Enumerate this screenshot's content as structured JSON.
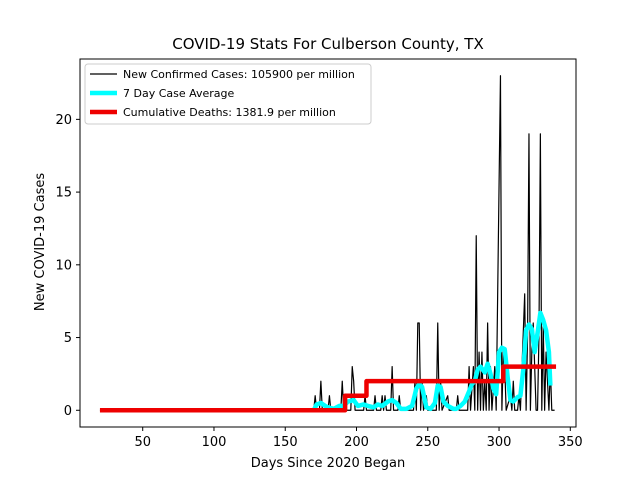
{
  "chart_data": {
    "type": "line",
    "title": "COVID-19 Stats For Culberson County, TX",
    "xlabel": "Days Since 2020 Began",
    "ylabel": "New COVID-19 Cases",
    "xlim": [
      6,
      354
    ],
    "ylim": [
      -1.15,
      24.15
    ],
    "x_ticks": [
      50,
      100,
      150,
      200,
      250,
      300,
      350
    ],
    "y_ticks": [
      0,
      5,
      10,
      15,
      20
    ],
    "grid": false,
    "legend_position": "top-left",
    "series": [
      {
        "name": "New Confirmed Cases: 105900 per million",
        "color": "#000000",
        "points": [
          [
            20,
            0
          ],
          [
            170,
            0
          ],
          [
            171,
            1
          ],
          [
            172,
            0
          ],
          [
            174,
            0
          ],
          [
            175,
            2
          ],
          [
            176,
            0
          ],
          [
            180,
            0
          ],
          [
            181,
            1
          ],
          [
            182,
            0
          ],
          [
            189,
            0
          ],
          [
            190,
            2
          ],
          [
            191,
            0
          ],
          [
            196,
            0
          ],
          [
            197,
            3
          ],
          [
            198,
            2
          ],
          [
            199,
            0
          ],
          [
            205,
            0
          ],
          [
            206,
            1
          ],
          [
            207,
            0
          ],
          [
            212,
            0
          ],
          [
            213,
            1
          ],
          [
            214,
            0
          ],
          [
            217,
            0
          ],
          [
            218,
            1
          ],
          [
            219,
            0
          ],
          [
            220,
            1
          ],
          [
            221,
            0
          ],
          [
            224,
            0
          ],
          [
            225,
            3
          ],
          [
            226,
            0
          ],
          [
            229,
            0
          ],
          [
            230,
            1
          ],
          [
            231,
            0
          ],
          [
            240,
            0
          ],
          [
            241,
            2
          ],
          [
            242,
            0
          ],
          [
            243,
            6
          ],
          [
            244,
            6
          ],
          [
            245,
            0
          ],
          [
            246,
            2
          ],
          [
            247,
            0
          ],
          [
            249,
            1
          ],
          [
            250,
            0
          ],
          [
            256,
            0
          ],
          [
            257,
            6
          ],
          [
            258,
            0
          ],
          [
            259,
            2
          ],
          [
            260,
            0
          ],
          [
            264,
            1
          ],
          [
            265,
            0
          ],
          [
            270,
            0
          ],
          [
            271,
            1
          ],
          [
            272,
            0
          ],
          [
            278,
            0
          ],
          [
            279,
            3
          ],
          [
            280,
            0
          ],
          [
            282,
            3
          ],
          [
            283,
            0
          ],
          [
            284,
            12
          ],
          [
            285,
            0
          ],
          [
            286,
            4
          ],
          [
            287,
            0
          ],
          [
            288,
            4
          ],
          [
            289,
            0
          ],
          [
            290,
            2
          ],
          [
            291,
            0
          ],
          [
            292,
            6
          ],
          [
            293,
            0
          ],
          [
            294,
            3
          ],
          [
            295,
            0
          ],
          [
            297,
            3
          ],
          [
            298,
            0
          ],
          [
            301,
            23
          ],
          [
            302,
            0
          ],
          [
            303,
            4
          ],
          [
            304,
            3
          ],
          [
            305,
            0
          ],
          [
            308,
            1
          ],
          [
            309,
            0
          ],
          [
            310,
            2
          ],
          [
            311,
            0
          ],
          [
            313,
            0
          ],
          [
            314,
            1
          ],
          [
            315,
            0
          ],
          [
            318,
            8
          ],
          [
            319,
            0
          ],
          [
            320,
            5
          ],
          [
            321,
            19
          ],
          [
            322,
            0
          ],
          [
            323,
            4
          ],
          [
            324,
            6
          ],
          [
            325,
            3
          ],
          [
            326,
            0
          ],
          [
            327,
            0
          ],
          [
            328,
            5
          ],
          [
            329,
            19
          ],
          [
            330,
            0
          ],
          [
            331,
            6
          ],
          [
            332,
            0
          ],
          [
            333,
            4
          ],
          [
            334,
            2
          ],
          [
            335,
            0
          ],
          [
            336,
            3
          ],
          [
            337,
            0
          ],
          [
            339,
            0
          ]
        ]
      },
      {
        "name": "7 Day Case Average",
        "color": "#00ffff",
        "points": [
          [
            170,
            0
          ],
          [
            172,
            0.4
          ],
          [
            175,
            0.5
          ],
          [
            178,
            0.3
          ],
          [
            180,
            0.2
          ],
          [
            184,
            0.1
          ],
          [
            188,
            0.3
          ],
          [
            191,
            0.3
          ],
          [
            194,
            0.6
          ],
          [
            198,
            0.7
          ],
          [
            201,
            0.3
          ],
          [
            205,
            0.4
          ],
          [
            208,
            0.3
          ],
          [
            212,
            0.2
          ],
          [
            215,
            0.4
          ],
          [
            218,
            0.3
          ],
          [
            222,
            0.6
          ],
          [
            225,
            0.7
          ],
          [
            228,
            0.5
          ],
          [
            231,
            0.1
          ],
          [
            235,
            0.1
          ],
          [
            239,
            0.3
          ],
          [
            242,
            1.5
          ],
          [
            244,
            1.8
          ],
          [
            246,
            1.6
          ],
          [
            249,
            0.2
          ],
          [
            252,
            0.1
          ],
          [
            255,
            0.5
          ],
          [
            257,
            1.7
          ],
          [
            259,
            1.6
          ],
          [
            261,
            0.6
          ],
          [
            264,
            0.3
          ],
          [
            268,
            0.1
          ],
          [
            270,
            0.1
          ],
          [
            273,
            0.3
          ],
          [
            276,
            0.6
          ],
          [
            279,
            1.3
          ],
          [
            281,
            1.8
          ],
          [
            283,
            2.0
          ],
          [
            285,
            2.8
          ],
          [
            287,
            3.0
          ],
          [
            290,
            2.6
          ],
          [
            292,
            3.2
          ],
          [
            294,
            2.5
          ],
          [
            296,
            1.5
          ],
          [
            298,
            1.1
          ],
          [
            300,
            4.0
          ],
          [
            302,
            4.3
          ],
          [
            304,
            4.2
          ],
          [
            306,
            2.3
          ],
          [
            308,
            0.7
          ],
          [
            310,
            0.6
          ],
          [
            313,
            0.9
          ],
          [
            315,
            1.0
          ],
          [
            317,
            2.8
          ],
          [
            319,
            5.5
          ],
          [
            321,
            5.9
          ],
          [
            323,
            5.6
          ],
          [
            325,
            4.0
          ],
          [
            327,
            5.3
          ],
          [
            329,
            6.7
          ],
          [
            331,
            6.2
          ],
          [
            333,
            5.5
          ],
          [
            335,
            4.0
          ],
          [
            336,
            1.7
          ]
        ]
      },
      {
        "name": "Cumulative Deaths: 1381.9 per million",
        "color": "#ee0000",
        "points": [
          [
            20,
            0
          ],
          [
            192,
            0
          ],
          [
            192,
            1
          ],
          [
            207,
            1
          ],
          [
            207,
            2
          ],
          [
            303,
            2
          ],
          [
            303,
            3
          ],
          [
            340,
            3
          ]
        ]
      }
    ]
  }
}
